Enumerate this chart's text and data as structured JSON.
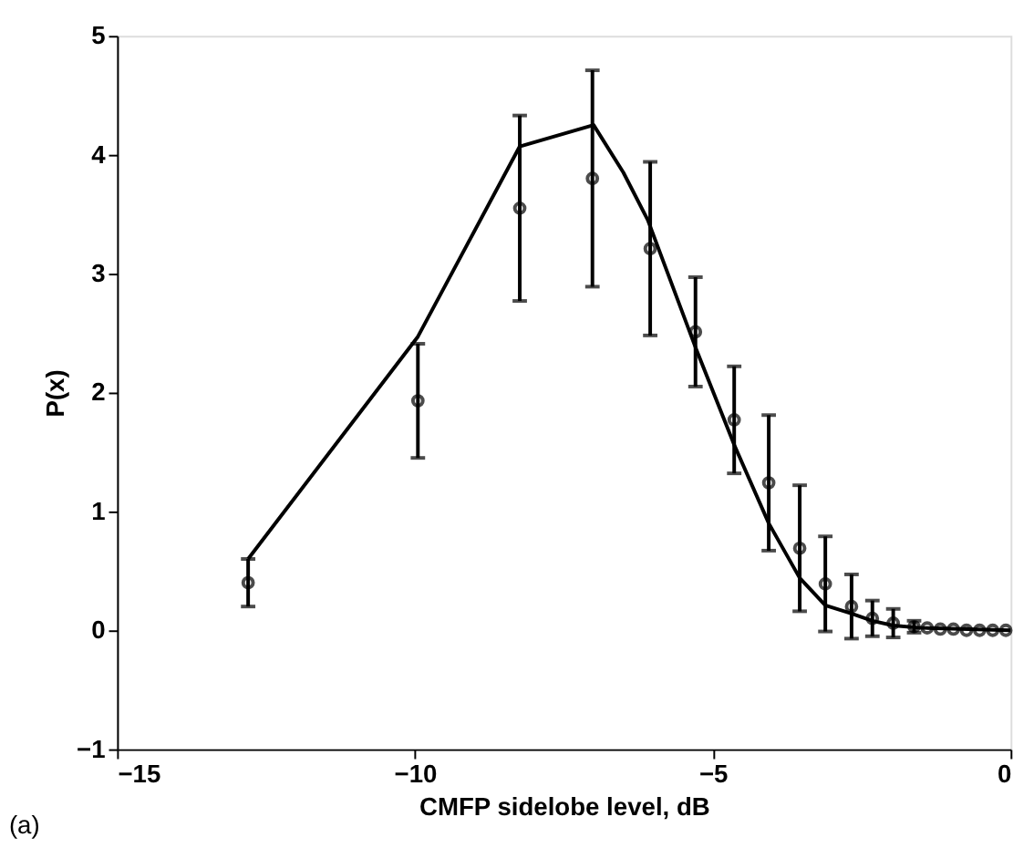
{
  "chart_data": {
    "type": "scatter",
    "xlabel": "CMFP sidelobe level, dB",
    "ylabel": "P(x)",
    "annotations": [
      "(a)"
    ],
    "xlim": [
      -15,
      0
    ],
    "xticks": [
      -15,
      -10,
      -5,
      0
    ],
    "ylim": [
      -1,
      5
    ],
    "yticks": [
      -1,
      0,
      1,
      2,
      3,
      4,
      5
    ],
    "grid": false,
    "series": [
      {
        "type": "line",
        "color": "#000000",
        "marker": "none",
        "line_style": "solid",
        "x": [
          -12.8,
          -9.95,
          -8.24,
          -7.0,
          -6.5,
          -6.09,
          -5.29,
          -4.64,
          -4.06,
          -3.54,
          -3.11,
          -2.67,
          -2.32,
          -1.97,
          -1.5,
          0.0
        ],
        "values": [
          0.6,
          2.47,
          4.07,
          4.25,
          3.85,
          3.45,
          2.38,
          1.56,
          0.9,
          0.44,
          0.21,
          0.14,
          0.08,
          0.04,
          0.02,
          0.0
        ]
      },
      {
        "type": "scatter",
        "color": "#000000",
        "marker": "circle",
        "x": [
          -12.8,
          -9.95,
          -8.24,
          -7.02,
          -6.05,
          -5.29,
          -4.64,
          -4.06,
          -3.54,
          -3.11,
          -2.67,
          -2.32,
          -1.97,
          -1.62,
          -1.4,
          -1.18,
          -0.96,
          -0.74,
          -0.52,
          -0.3,
          -0.08
        ],
        "values": [
          0.4,
          1.93,
          3.55,
          3.8,
          3.21,
          2.51,
          1.77,
          1.24,
          0.69,
          0.39,
          0.2,
          0.1,
          0.06,
          0.03,
          0.02,
          0.01,
          0.01,
          0.0,
          0.0,
          0.0,
          0.0
        ],
        "errors": [
          0.2,
          0.48,
          0.78,
          0.91,
          0.73,
          0.46,
          0.45,
          0.57,
          0.53,
          0.4,
          0.27,
          0.15,
          0.12,
          0.05,
          null,
          null,
          null,
          null,
          null,
          null,
          null
        ]
      }
    ]
  }
}
